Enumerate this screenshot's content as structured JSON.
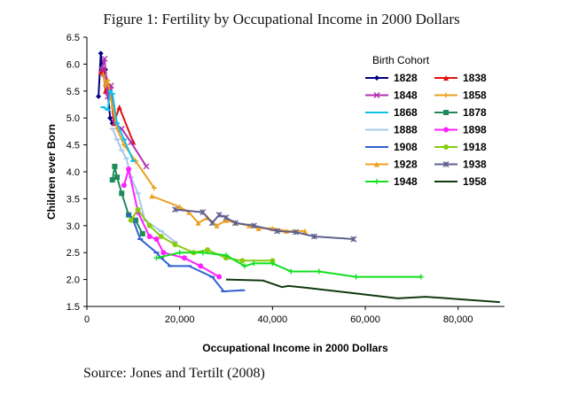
{
  "figure_title": "Figure 1: Fertility by Occupational Income in 2000 Dollars",
  "source": "Source: Jones and Tertilt (2008)",
  "chart_data": {
    "type": "line",
    "xlabel": "Occupational Income in 2000 Dollars",
    "ylabel": "Children ever Born",
    "xlim": [
      0,
      90000
    ],
    "ylim": [
      1.5,
      6.5
    ],
    "xticks": [
      0,
      20000,
      40000,
      60000,
      80000
    ],
    "xtick_labels": [
      "0",
      "20,000",
      "40,000",
      "60,000",
      "80,000"
    ],
    "yticks": [
      1.5,
      2.0,
      2.5,
      3.0,
      3.5,
      4.0,
      4.5,
      5.0,
      5.5,
      6.0,
      6.5
    ],
    "ytick_labels": [
      "1.5",
      "2.0",
      "2.5",
      "3.0",
      "3.5",
      "4.0",
      "4.5",
      "5.0",
      "5.5",
      "6.0",
      "6.5"
    ],
    "grid": false,
    "legend": {
      "title": "Birth Cohort",
      "placement": "top-right",
      "columns": 2
    },
    "series": [
      {
        "name": "1828",
        "color": "#000080",
        "marker": "diamond",
        "x": [
          2500,
          3000,
          3500,
          4000,
          4500,
          5000,
          5500
        ],
        "y": [
          5.4,
          6.2,
          5.8,
          5.9,
          5.5,
          5.0,
          4.9
        ]
      },
      {
        "name": "1838",
        "color": "#e01010",
        "marker": "triangle",
        "x": [
          3000,
          3500,
          4000,
          5000,
          5800,
          7000,
          10000
        ],
        "y": [
          5.85,
          5.9,
          5.5,
          5.6,
          4.9,
          5.2,
          4.55
        ]
      },
      {
        "name": "1848",
        "color": "#b030b0",
        "marker": "x",
        "x": [
          3200,
          3800,
          4500,
          5200,
          6000,
          7500,
          9500,
          12800
        ],
        "y": [
          5.9,
          6.1,
          5.4,
          5.6,
          4.9,
          4.8,
          4.55,
          4.1
        ]
      },
      {
        "name": "1858",
        "color": "#e8a020",
        "marker": "plus",
        "x": [
          3500,
          4000,
          4500,
          5500,
          6500,
          8000,
          10500,
          14500
        ],
        "y": [
          5.8,
          5.6,
          5.7,
          5.2,
          4.8,
          4.5,
          4.2,
          3.7
        ]
      },
      {
        "name": "1868",
        "color": "#10c0e8",
        "marker": "dash",
        "x": [
          3500,
          4500,
          5000,
          5500,
          6500,
          8000,
          10000
        ],
        "y": [
          5.2,
          5.15,
          5.5,
          5.45,
          4.9,
          4.6,
          4.2
        ]
      },
      {
        "name": "1878",
        "color": "#208a5a",
        "marker": "square",
        "x": [
          5500,
          6000,
          6500,
          7500,
          9000,
          10500,
          12000
        ],
        "y": [
          3.85,
          4.1,
          3.9,
          3.6,
          3.2,
          3.1,
          2.85
        ]
      },
      {
        "name": "1888",
        "color": "#a8c8e8",
        "marker": "dash",
        "x": [
          5500,
          6500,
          7500,
          8500,
          9500,
          11000,
          12500,
          16000,
          19000
        ],
        "y": [
          4.8,
          4.6,
          4.4,
          4.25,
          3.9,
          3.6,
          3.1,
          2.9,
          2.7
        ]
      },
      {
        "name": "1898",
        "color": "#ff20ff",
        "marker": "circle",
        "x": [
          8000,
          9000,
          11000,
          13500,
          15000,
          16500,
          21000,
          24500,
          28500
        ],
        "y": [
          3.75,
          4.05,
          3.25,
          2.8,
          2.75,
          2.5,
          2.4,
          2.25,
          2.05
        ]
      },
      {
        "name": "1908",
        "color": "#3060d0",
        "marker": "dash",
        "x": [
          9000,
          10000,
          11500,
          15000,
          16000,
          18000,
          22000,
          27000,
          29500,
          33500
        ],
        "y": [
          3.2,
          3.1,
          2.75,
          2.5,
          2.4,
          2.25,
          2.25,
          2.05,
          1.78,
          1.8
        ]
      },
      {
        "name": "1918",
        "color": "#88cc10",
        "marker": "circle",
        "x": [
          9500,
          11000,
          13500,
          16000,
          19000,
          23000,
          26000,
          30000,
          33500,
          40000
        ],
        "y": [
          3.1,
          3.3,
          3.0,
          2.8,
          2.65,
          2.5,
          2.55,
          2.4,
          2.35,
          2.35
        ]
      },
      {
        "name": "1928",
        "color": "#f0a020",
        "marker": "triangle",
        "x": [
          14000,
          20000,
          22000,
          24000,
          26000,
          28000,
          30000,
          32000,
          35000,
          37000,
          40000,
          43000,
          47000
        ],
        "y": [
          3.55,
          3.35,
          3.25,
          3.05,
          3.15,
          3.0,
          3.1,
          3.05,
          3.0,
          2.95,
          2.95,
          2.9,
          2.9
        ]
      },
      {
        "name": "1938",
        "color": "#606090",
        "marker": "asterisk",
        "x": [
          19000,
          25000,
          27000,
          28500,
          30000,
          32000,
          36000,
          41000,
          45000,
          49000,
          57500
        ],
        "y": [
          3.3,
          3.25,
          3.05,
          3.2,
          3.15,
          3.05,
          3.0,
          2.9,
          2.88,
          2.8,
          2.75
        ]
      },
      {
        "name": "1948",
        "color": "#10e020",
        "marker": "plus",
        "x": [
          15000,
          20000,
          25000,
          30000,
          34000,
          36000,
          40000,
          44000,
          50000,
          58000,
          72000
        ],
        "y": [
          2.4,
          2.5,
          2.5,
          2.45,
          2.25,
          2.3,
          2.3,
          2.15,
          2.15,
          2.05,
          2.05
        ]
      },
      {
        "name": "1958",
        "color": "#103a10",
        "marker": "none",
        "x": [
          30000,
          38000,
          42000,
          43500,
          47000,
          57000,
          67000,
          73000,
          89000
        ],
        "y": [
          2.0,
          1.98,
          1.86,
          1.88,
          1.85,
          1.75,
          1.65,
          1.68,
          1.58
        ]
      }
    ]
  }
}
